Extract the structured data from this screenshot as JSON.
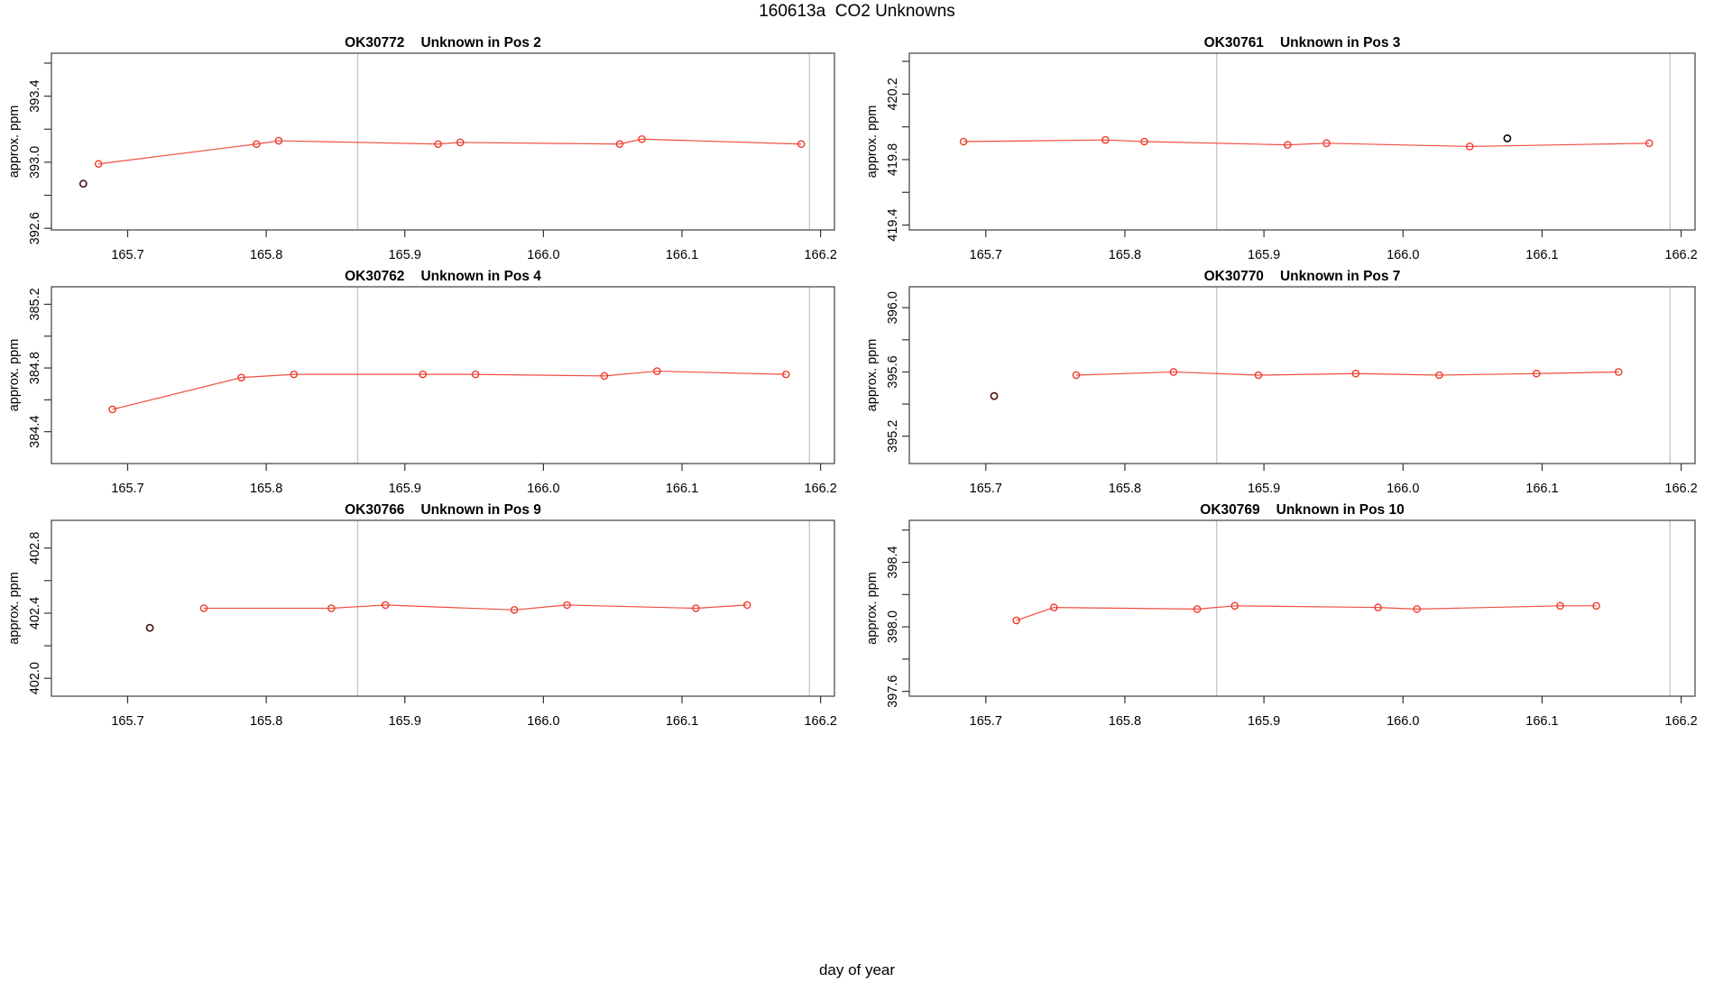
{
  "page_title": "160613a  CO2 Unknowns",
  "outer_xlabel": "day of year",
  "colors": {
    "series": "#ef3b2c",
    "outlier_dark": "#4a1414",
    "outlier_black": "#000000",
    "vline": "#c9c9c9",
    "border": "#4d4d4d",
    "tick": "#333333",
    "background": "#ffffff"
  },
  "x_axis": {
    "lim": [
      165.645,
      166.21
    ],
    "ticks": [
      165.7,
      165.8,
      165.9,
      166.0,
      166.1,
      166.2
    ],
    "tick_labels": [
      "165.7",
      "165.8",
      "165.9",
      "166.0",
      "166.1",
      "166.2"
    ],
    "vlines": [
      165.866,
      166.192
    ]
  },
  "chart_data": [
    {
      "type": "line",
      "title_id": "OK30772",
      "title_desc": "Unknown in Pos 2",
      "ylabel": "approx. ppm",
      "ylim": [
        392.59,
        393.66
      ],
      "yticks": [
        392.6,
        392.8,
        393.0,
        393.2,
        393.4,
        393.6
      ],
      "ytick_labels": [
        "392.6",
        "",
        "393.0",
        "",
        "393.4",
        ""
      ],
      "x": [
        165.679,
        165.793,
        165.809,
        165.924,
        165.94,
        166.055,
        166.071,
        166.186
      ],
      "y": [
        392.99,
        393.11,
        393.13,
        393.11,
        393.12,
        393.11,
        393.14,
        393.11
      ],
      "outliers": [
        {
          "x": 165.668,
          "y": 392.87,
          "color": "dark"
        }
      ]
    },
    {
      "type": "line",
      "title_id": "OK30761",
      "title_desc": "Unknown in Pos 3",
      "ylabel": "approx. ppm",
      "ylim": [
        419.37,
        420.45
      ],
      "yticks": [
        419.4,
        419.6,
        419.8,
        420.0,
        420.2,
        420.4
      ],
      "ytick_labels": [
        "419.4",
        "",
        "419.8",
        "",
        "420.2",
        ""
      ],
      "x": [
        165.684,
        165.786,
        165.814,
        165.917,
        165.945,
        166.048,
        166.177
      ],
      "y": [
        419.91,
        419.92,
        419.91,
        419.89,
        419.9,
        419.88,
        419.9
      ],
      "outliers": [
        {
          "x": 166.075,
          "y": 419.93,
          "color": "black"
        }
      ]
    },
    {
      "type": "line",
      "title_id": "OK30762",
      "title_desc": "Unknown in Pos 4",
      "ylabel": "approx. ppm",
      "ylim": [
        384.2,
        385.31
      ],
      "yticks": [
        384.4,
        384.6,
        384.8,
        385.0,
        385.2
      ],
      "ytick_labels": [
        "384.4",
        "",
        "384.8",
        "",
        "385.2"
      ],
      "x": [
        165.689,
        165.782,
        165.82,
        165.913,
        165.951,
        166.044,
        166.082,
        166.175
      ],
      "y": [
        384.54,
        384.74,
        384.76,
        384.76,
        384.76,
        384.75,
        384.78,
        384.76
      ],
      "outliers": []
    },
    {
      "type": "line",
      "title_id": "OK30770",
      "title_desc": "Unknown in Pos 7",
      "ylabel": "approx. ppm",
      "ylim": [
        395.03,
        396.13
      ],
      "yticks": [
        395.2,
        395.4,
        395.6,
        395.8,
        396.0
      ],
      "ytick_labels": [
        "395.2",
        "",
        "395.6",
        "",
        "396.0"
      ],
      "x": [
        165.765,
        165.835,
        165.896,
        165.966,
        166.026,
        166.096,
        166.155
      ],
      "y": [
        395.58,
        395.6,
        395.58,
        395.59,
        395.58,
        395.59,
        395.6
      ],
      "outliers": [
        {
          "x": 165.706,
          "y": 395.45,
          "color": "dark"
        }
      ]
    },
    {
      "type": "line",
      "title_id": "OK30766",
      "title_desc": "Unknown in Pos 9",
      "ylabel": "approx. ppm",
      "ylim": [
        401.89,
        402.97
      ],
      "yticks": [
        402.0,
        402.2,
        402.4,
        402.6,
        402.8
      ],
      "ytick_labels": [
        "402.0",
        "",
        "402.4",
        "",
        "402.8"
      ],
      "x": [
        165.755,
        165.847,
        165.886,
        165.979,
        166.017,
        166.11,
        166.147
      ],
      "y": [
        402.43,
        402.43,
        402.45,
        402.42,
        402.45,
        402.43,
        402.45
      ],
      "outliers": [
        {
          "x": 165.716,
          "y": 402.31,
          "color": "dark"
        }
      ]
    },
    {
      "type": "line",
      "title_id": "OK30769",
      "title_desc": "Unknown in Pos 10",
      "ylabel": "approx. ppm",
      "ylim": [
        397.57,
        398.66
      ],
      "yticks": [
        397.6,
        397.8,
        398.0,
        398.2,
        398.4,
        398.6
      ],
      "ytick_labels": [
        "397.6",
        "",
        "398.0",
        "",
        "398.4",
        ""
      ],
      "x": [
        165.722,
        165.749,
        165.852,
        165.879,
        165.982,
        166.01,
        166.113,
        166.139
      ],
      "y": [
        398.04,
        398.12,
        398.11,
        398.13,
        398.12,
        398.11,
        398.13,
        398.13
      ],
      "outliers": []
    }
  ]
}
